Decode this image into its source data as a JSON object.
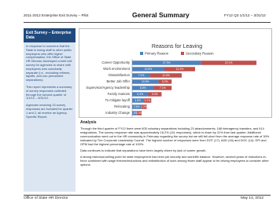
{
  "header": {
    "left": "2011-2012 Enterprise Exit Survey – Pilot",
    "title": "General Summary",
    "right": "FY12 Q3 1/1/12 – 3/31/12"
  },
  "sidebar": {
    "title": "Exit Survey – Enterprise Data",
    "paragraphs": [
      "In response to concerns that the State is losing staff to other public employers who offer higher compensation, the Office of State HR Director developed a brief exit survey for agencies to share with employees who voluntarily separate (i.e., excluding retirees, layoffs, and non-permanent separations).",
      "This report represents a summary of survey responses collected through the second quarter of 1/1/12 – 3/31/12.",
      "Agencies involving 15 survey responses are included for quarter 1 and 2, all receive an Agency Specific Report."
    ]
  },
  "chart_data": {
    "type": "bar",
    "orientation": "horizontal",
    "stacked": true,
    "title": "Reasons for Leaving",
    "categories": [
      "Career Opportunity",
      "Work environment",
      "Dissatisfaction",
      "Better Job Offer",
      "Supervisor/Agency leadership",
      "Family reasons",
      "To mitigate layoff",
      "Relocating",
      "Industry Change"
    ],
    "series": [
      {
        "name": "Primary Reason",
        "color": "#4f81bd",
        "values": [
          27.3,
          12.8,
          7.2,
          10.5,
          8.6,
          6.4,
          4.5,
          3.6,
          1.8
        ],
        "value_labels": [
          "27.3%",
          "12.8%",
          "7.2%",
          "10.5%",
          "8.6%",
          "6.4%",
          "4.5%",
          "3.6%",
          "1.8%"
        ]
      },
      {
        "name": "Secondary Reason",
        "color": "#c0504d",
        "values": [
          22.1,
          12.2,
          12.5,
          5.2,
          7.1,
          5.3,
          3.1,
          2.2,
          2.0
        ],
        "value_labels": [
          "22.1%",
          "12.2%",
          "12.5%",
          "5.2%",
          "7.1%",
          "5.3%",
          "3.1%",
          "2.2%",
          "2.0%"
        ]
      }
    ],
    "legend": "top"
  },
  "analysis": {
    "title": "Analysis",
    "paragraphs": [
      "Through the third quarter of FY12 there were 605 voluntary separations including 23 abandonments, 168 interagency transfers, and 414 resignations. The survey response rate was approximately 18.2% (111 responses), which is down by 11% from last quarter. Additional communication went out to the HR community in February regarding the survey but we still fell short from the average response rate of 30% indicated by The Corporate Leadership Council. The highest number of responses were from DOT (17), ADD (16) and DOC (14). DPI and OPM had the highest percentage rate of 100%.",
      "Data continues to indicate that separations have been largely driven by lack of career growth.",
      "A strong historical-selling point for state employment has been job security and work/life balance. However, several years of reductions-in-force combined with wage freezes/reductions and redistribution of work among fewer staff appear to be driving employees to consider other options."
    ]
  },
  "footer": {
    "left": "Office of State HR Director",
    "right": "May 14, 2012"
  }
}
